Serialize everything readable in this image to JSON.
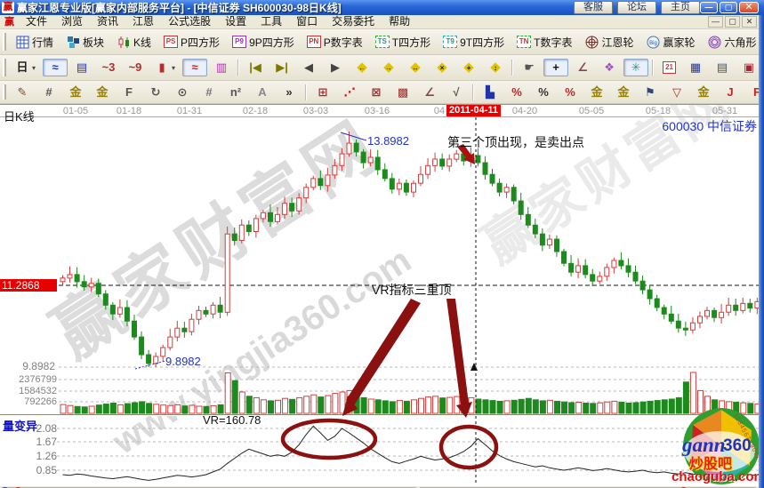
{
  "window": {
    "logo_char": "赢",
    "title": "赢家江恩专业版[赢家内部服务平台] - [中信证券  SH600030-98日K线]",
    "quick_buttons": [
      "客服",
      "论坛",
      "主页"
    ],
    "controls": {
      "minimize": "—",
      "maximize": "▢",
      "close": "✕"
    }
  },
  "menu": {
    "items": [
      "文件",
      "浏览",
      "资讯",
      "江恩",
      "公式选股",
      "设置",
      "工具",
      "窗口",
      "交易委托",
      "帮助"
    ],
    "child_controls": [
      "—",
      "▢",
      "✕"
    ]
  },
  "toolbars": {
    "row1": {
      "overflow": "»",
      "items": [
        {
          "name": "quotes-button",
          "label": "行情",
          "icon": "grid"
        },
        {
          "name": "sectors-button",
          "label": "板块",
          "icon": "blocks"
        },
        {
          "name": "kline-button",
          "label": "K线",
          "icon": "candles"
        },
        {
          "name": "p-square-button",
          "label": "P四方形",
          "icon": "PS",
          "style": "red"
        },
        {
          "name": "p9-square-button",
          "label": "9P四方形",
          "icon": "P9",
          "style": "purple"
        },
        {
          "name": "p-number-button",
          "label": "P数字表",
          "icon": "PN",
          "style": "red"
        },
        {
          "name": "t-square-button",
          "label": "T四方形",
          "icon": "TS",
          "style": "greendash"
        },
        {
          "name": "t9-square-button",
          "label": "9T四方形",
          "icon": "T9",
          "style": "cyandash"
        },
        {
          "name": "t-number-button",
          "label": "T数字表",
          "icon": "TN",
          "style": "greendashred"
        },
        {
          "name": "gann-wheel-button",
          "label": "江恩轮",
          "icon": "wheel"
        },
        {
          "name": "winner-wheel-button",
          "label": "赢家轮",
          "icon": "bigwheel"
        },
        {
          "name": "hexagon-button",
          "label": "六角形",
          "icon": "hexagon"
        }
      ]
    },
    "row2": {
      "items": [
        {
          "name": "period-day-dropdown",
          "glyph": "日",
          "color": "#222",
          "dd": true
        },
        {
          "name": "zigzag-blue-icon",
          "glyph": "≈",
          "color": "#2233cc",
          "pressed": true
        },
        {
          "name": "info-card-icon",
          "glyph": "▤",
          "color": "#2233cc"
        },
        {
          "name": "wave-3-icon",
          "glyph": "~3",
          "color": "#b03030"
        },
        {
          "name": "wave-9-icon",
          "glyph": "~9",
          "color": "#b03030"
        },
        {
          "name": "candle-style-dropdown",
          "glyph": "▮",
          "color": "#b03030",
          "dd": true
        },
        {
          "name": "zigzag-red-icon",
          "glyph": "≈",
          "color": "#cc2222",
          "pressed": true
        },
        {
          "name": "histogram-icon",
          "glyph": "▥",
          "color": "#b030b0"
        },
        {
          "sep": true
        },
        {
          "name": "first-bar-icon",
          "glyph": "|◀",
          "color": "#7a7a00"
        },
        {
          "name": "last-bar-icon",
          "glyph": "▶|",
          "color": "#7a7a00"
        },
        {
          "name": "prev-bar-icon",
          "glyph": "◀",
          "color": "#444"
        },
        {
          "name": "next-bar-icon",
          "glyph": "▶",
          "color": "#444"
        },
        {
          "name": "diamond-left-icon",
          "glyph": "◆",
          "overlay": "←"
        },
        {
          "name": "diamond-right-icon",
          "glyph": "◆",
          "overlay": "→"
        },
        {
          "name": "diamond-hswap-icon",
          "glyph": "◆",
          "overlay": "↔"
        },
        {
          "name": "diamond-cross-icon",
          "glyph": "◆",
          "overlay": "×"
        },
        {
          "name": "diamond-plus-icon",
          "glyph": "◆",
          "overlay": "+"
        },
        {
          "name": "diamond-vswap-icon",
          "glyph": "◆",
          "overlay": "↕"
        },
        {
          "sep": true
        },
        {
          "name": "hand-tool-icon",
          "glyph": "☛",
          "color": "#555"
        },
        {
          "name": "crosshair-tool-icon",
          "glyph": "+",
          "color": "#111",
          "pressed": true
        },
        {
          "name": "angle-measure-icon",
          "glyph": "∠",
          "color": "#884444"
        },
        {
          "name": "flower-tool-icon",
          "glyph": "❖",
          "color": "#a050c0"
        },
        {
          "name": "brain-tool-icon",
          "glyph": "✳",
          "color": "#2a9a8a",
          "pressed": true
        },
        {
          "sep": true
        },
        {
          "name": "calendar-icon",
          "glyph": "21",
          "boxed21": true
        },
        {
          "name": "calculator-icon",
          "glyph": "▦",
          "color": "#2233aa"
        },
        {
          "name": "notepad-icon",
          "glyph": "▤",
          "color": "#445566"
        },
        {
          "name": "save-icon",
          "glyph": "▣",
          "color": "#aa2233"
        },
        {
          "name": "export-icon",
          "glyph": "◫",
          "color": "#334477"
        },
        {
          "name": "send-icon",
          "glyph": "⊐",
          "color": "#334477"
        }
      ]
    },
    "row3": {
      "items": [
        {
          "name": "draw-pencil-icon",
          "glyph": "✎",
          "color": "#884422"
        },
        {
          "name": "gann-fence-icon",
          "glyph": "#",
          "color": "#555"
        },
        {
          "name": "gold-grid-icon",
          "glyph": "金",
          "color": "#998000"
        },
        {
          "name": "gold-grid2-icon",
          "glyph": "金",
          "color": "#998000"
        },
        {
          "name": "fib-grid-icon",
          "glyph": "F",
          "color": "#555"
        },
        {
          "name": "spiral-icon",
          "glyph": "↻",
          "color": "#555"
        },
        {
          "name": "time-cycle-icon",
          "glyph": "⊙",
          "color": "#555"
        },
        {
          "name": "grid-lines-icon",
          "glyph": "#",
          "color": "#777"
        },
        {
          "name": "n-square-icon",
          "glyph": "n²",
          "color": "#555"
        },
        {
          "name": "a-line-icon",
          "glyph": "A",
          "color": "#888"
        },
        {
          "name": "row3-overflow",
          "glyph": "»",
          "color": "#333"
        },
        {
          "sep": true
        },
        {
          "name": "price-grid-icon",
          "glyph": "⊞",
          "color": "#a03030"
        },
        {
          "name": "fan-lines-icon",
          "glyph": "⋰",
          "color": "#cc2222"
        },
        {
          "name": "box-x-icon",
          "glyph": "⊠",
          "color": "#a03030"
        },
        {
          "name": "dense-grid-icon",
          "glyph": "▩",
          "color": "#a03030"
        },
        {
          "name": "trend-angle-icon",
          "glyph": "∠",
          "color": "#884444"
        },
        {
          "name": "wave-check-icon",
          "glyph": "√",
          "color": "#555"
        },
        {
          "sep": true
        },
        {
          "name": "volume-profile-icon",
          "glyph": "▙",
          "color": "#2233aa"
        },
        {
          "name": "percent-zone-icon",
          "glyph": "%",
          "color": "#cc2222"
        },
        {
          "name": "percent-icon",
          "glyph": "%",
          "color": "#333"
        },
        {
          "name": "percent-line-icon",
          "glyph": "%",
          "color": "#cc2222"
        },
        {
          "name": "gold-circle-icon",
          "glyph": "金",
          "color": "#998000"
        },
        {
          "name": "gold-line-icon",
          "glyph": "金",
          "color": "#998000"
        },
        {
          "name": "flag-tool-icon",
          "glyph": "⚑",
          "color": "#334477"
        },
        {
          "name": "channel-icon",
          "glyph": "▽",
          "color": "#a03030"
        },
        {
          "name": "gold-box-icon",
          "glyph": "金",
          "color": "#998000"
        },
        {
          "name": "j-angle-icon",
          "glyph": "J",
          "color": "#cc2222"
        },
        {
          "name": "f-angle-icon",
          "glyph": "F",
          "color": "#cc2222"
        },
        {
          "name": "gold-angle-icon",
          "glyph": "∠",
          "color": "#998000"
        },
        {
          "name": "speed-angle-icon",
          "glyph": "∠",
          "color": "#cc2222"
        },
        {
          "name": "corner-angle-icon",
          "glyph": "◣",
          "color": "#a03030"
        },
        {
          "name": "w-angle-icon",
          "glyph": "W",
          "color": "#a03030"
        }
      ]
    }
  },
  "chart": {
    "period_label": "日K线",
    "symbol_label": "600030 中信证券",
    "dates": [
      "01-05",
      "01-18",
      "01-31",
      "02-18",
      "03-03",
      "03-16",
      "04",
      "04-20",
      "05-05",
      "05-18",
      "05-31"
    ],
    "highlight_date": "2011-04-11",
    "last_price": "11.2868",
    "low_grid_label": "9.8982",
    "low_annotation": "9.8982",
    "high_annotation": "13.8982",
    "volume_ticks": [
      "2376799",
      "1584532",
      "792266"
    ],
    "vr_name": "量变异",
    "vr_value": "VR=160.78",
    "vr_ticks": [
      "2.08",
      "1.67",
      "1.26",
      "0.85"
    ],
    "annotation_top": "第三个顶出现，是卖出点",
    "annotation_vr": "VR指标三重顶",
    "watermark_main": "赢家财富网",
    "watermark_url": "www.yingjia360.com",
    "logo_badge": {
      "brand": "gann",
      "num": "360",
      "tag": "炒股吧",
      "site": "chaoguba.com",
      "ring": "1234567890123456"
    }
  },
  "colors": {
    "up": "#d43c3c",
    "down": "#1c8a1c",
    "accent_blue": "#2233cc",
    "tag_red": "#e60000",
    "annot_red": "#8b1010",
    "grid_gray": "#b8b8b8"
  },
  "chart_data": {
    "type": "candlestick",
    "symbol": "600030 中信证券",
    "period": "日K线",
    "first_open": 11.35,
    "price_gridlines": [
      11.2868,
      9.8982
    ],
    "marked_high": 13.8982,
    "marked_low": 9.8982,
    "volume_axis": [
      2376799,
      1584532,
      792266
    ],
    "vr_axis": [
      2.08,
      1.67,
      1.26,
      0.85
    ],
    "vr_last": 160.78,
    "highlight_index": 58,
    "overrides": {
      "high": {
        "40": 13.8982
      },
      "low": {
        "12": 9.8982
      }
    },
    "closes": [
      11.41,
      11.47,
      11.35,
      11.26,
      11.32,
      11.14,
      10.95,
      10.8,
      10.91,
      10.68,
      10.41,
      10.11,
      9.96,
      10.08,
      10.23,
      10.41,
      10.56,
      10.5,
      10.71,
      10.86,
      10.8,
      10.95,
      10.83,
      12.16,
      12.05,
      12.31,
      12.2,
      12.42,
      12.52,
      12.37,
      12.49,
      12.68,
      12.55,
      12.77,
      12.95,
      13.1,
      12.98,
      13.16,
      13.32,
      13.52,
      13.7,
      13.55,
      13.37,
      13.46,
      13.25,
      13.1,
      12.92,
      13.02,
      12.87,
      13.02,
      13.17,
      13.32,
      13.43,
      13.31,
      13.43,
      13.52,
      13.4,
      13.49,
      13.37,
      13.17,
      13.02,
      12.87,
      12.95,
      12.72,
      12.49,
      12.31,
      12.16,
      11.97,
      12.07,
      11.86,
      11.66,
      11.51,
      11.62,
      11.47,
      11.36,
      11.44,
      11.59,
      11.71,
      11.62,
      11.51,
      11.36,
      11.21,
      11.06,
      10.91,
      10.8,
      10.68,
      10.56,
      10.53,
      10.65,
      10.76,
      10.86,
      10.74,
      10.83,
      10.95,
      10.86,
      10.98,
      10.9,
      11.01
    ],
    "volumes_wan": [
      62,
      55,
      48,
      45,
      50,
      58,
      65,
      72,
      60,
      68,
      75,
      82,
      70,
      64,
      58,
      55,
      60,
      52,
      56,
      50,
      48,
      54,
      60,
      285,
      230,
      150,
      120,
      110,
      95,
      88,
      92,
      105,
      98,
      110,
      120,
      130,
      115,
      125,
      140,
      150,
      160,
      130,
      110,
      100,
      95,
      88,
      82,
      90,
      85,
      95,
      105,
      115,
      120,
      108,
      112,
      118,
      105,
      110,
      100,
      95,
      90,
      85,
      88,
      92,
      98,
      105,
      95,
      88,
      92,
      85,
      80,
      75,
      78,
      72,
      70,
      74,
      80,
      85,
      78,
      72,
      75,
      80,
      85,
      90,
      95,
      100,
      110,
      220,
      290,
      160,
      120,
      95,
      88,
      82,
      78,
      74,
      70,
      66
    ],
    "vr": [
      0.72,
      0.7,
      0.74,
      0.72,
      0.68,
      0.65,
      0.62,
      0.6,
      0.63,
      0.66,
      0.62,
      0.58,
      0.55,
      0.58,
      0.62,
      0.66,
      0.7,
      0.68,
      0.65,
      0.68,
      0.72,
      0.8,
      0.88,
      1.05,
      1.2,
      1.35,
      1.47,
      1.4,
      1.33,
      1.26,
      1.3,
      1.26,
      1.38,
      1.6,
      1.9,
      2.15,
      1.95,
      1.73,
      1.85,
      2.08,
      1.95,
      1.8,
      1.65,
      1.48,
      1.35,
      1.22,
      1.1,
      1.05,
      1.12,
      1.18,
      1.26,
      1.2,
      1.15,
      1.18,
      1.22,
      1.3,
      1.4,
      1.55,
      1.78,
      1.6,
      1.42,
      1.28,
      1.18,
      1.1,
      1.05,
      1.0,
      0.95,
      0.98,
      0.92,
      0.88,
      0.85,
      0.88,
      0.92,
      0.88,
      0.84,
      0.86,
      0.9,
      0.86,
      0.82,
      0.8,
      0.82,
      0.85,
      0.8,
      0.78,
      0.8,
      0.76,
      0.74,
      0.78,
      0.74,
      0.72,
      0.74,
      0.7,
      0.72,
      0.7,
      0.72,
      0.74,
      0.72,
      0.7
    ]
  }
}
